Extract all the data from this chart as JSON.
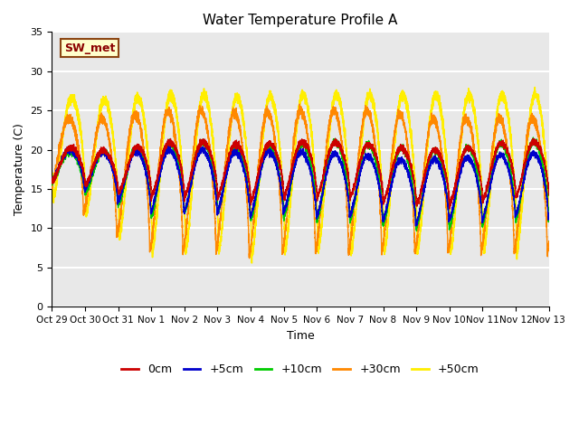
{
  "title": "Water Temperature Profile A",
  "xlabel": "Time",
  "ylabel": "Temperature (C)",
  "ylim": [
    0,
    35
  ],
  "background_color": "#e8e8e8",
  "grid_color": "#ffffff",
  "series": {
    "0cm": {
      "color": "#cc0000",
      "lw": 1.0
    },
    "+5cm": {
      "color": "#0000cc",
      "lw": 1.0
    },
    "+10cm": {
      "color": "#00cc00",
      "lw": 1.0
    },
    "+30cm": {
      "color": "#ff8800",
      "lw": 1.0
    },
    "+50cm": {
      "color": "#ffee00",
      "lw": 1.2
    }
  },
  "annotation_text": "SW_met",
  "annotation_color": "#8b0000",
  "annotation_bg": "#ffffcc",
  "annotation_border": "#8b4513",
  "tick_labels": [
    "Oct 29",
    "Oct 30",
    "Oct 31",
    "Nov 1",
    "Nov 2",
    "Nov 3",
    "Nov 4",
    "Nov 5",
    "Nov 6",
    "Nov 7",
    "Nov 8",
    "Nov 9",
    "Nov 10",
    "Nov 11",
    "Nov 12",
    "Nov 13"
  ],
  "tick_positions": [
    0,
    1,
    2,
    3,
    4,
    5,
    6,
    7,
    8,
    9,
    10,
    11,
    12,
    13,
    14,
    15
  ]
}
